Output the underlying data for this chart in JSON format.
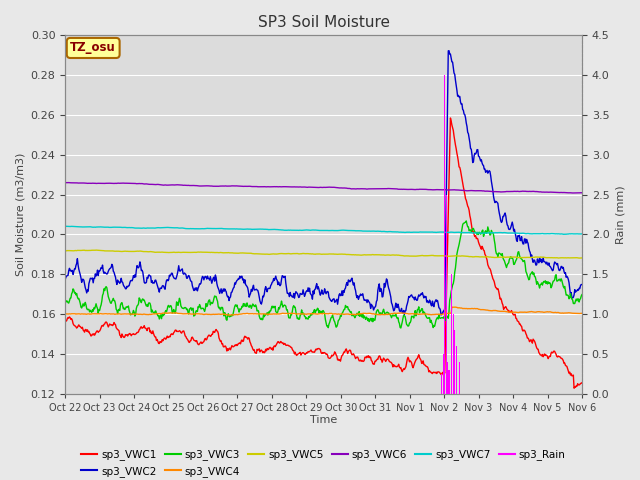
{
  "title": "SP3 Soil Moisture",
  "xlabel": "Time",
  "ylabel_left": "Soil Moisture (m3/m3)",
  "ylabel_right": "Rain (mm)",
  "ylim_left": [
    0.12,
    0.3
  ],
  "ylim_right": [
    0.0,
    4.5
  ],
  "fig_bg_color": "#e8e8e8",
  "plot_bg_color": "#dcdcdc",
  "grid_color": "#ffffff",
  "annotation_text": "TZ_osu",
  "annotation_box_color": "#ffff99",
  "annotation_box_edge": "#aa6600",
  "series": {
    "sp3_VWC1": {
      "color": "#ff0000",
      "lw": 1.0
    },
    "sp3_VWC2": {
      "color": "#0000cc",
      "lw": 1.0
    },
    "sp3_VWC3": {
      "color": "#00cc00",
      "lw": 1.0
    },
    "sp3_VWC4": {
      "color": "#ff8800",
      "lw": 1.0
    },
    "sp3_VWC5": {
      "color": "#cccc00",
      "lw": 1.0
    },
    "sp3_VWC6": {
      "color": "#8800bb",
      "lw": 1.0
    },
    "sp3_VWC7": {
      "color": "#00cccc",
      "lw": 1.0
    },
    "sp3_Rain": {
      "color": "#ff00ff",
      "lw": 1.0
    }
  },
  "xtick_labels": [
    "Oct 22",
    "Oct 23",
    "Oct 24",
    "Oct 25",
    "Oct 26",
    "Oct 27",
    "Oct 28",
    "Oct 29",
    "Oct 30",
    "Oct 31",
    "Nov 1",
    "Nov 2",
    "Nov 3",
    "Nov 4",
    "Nov 5",
    "Nov 6"
  ],
  "yticks_left": [
    0.12,
    0.14,
    0.16,
    0.18,
    0.2,
    0.22,
    0.24,
    0.26,
    0.28,
    0.3
  ],
  "yticks_right": [
    0.0,
    0.5,
    1.0,
    1.5,
    2.0,
    2.5,
    3.0,
    3.5,
    4.0,
    4.5
  ],
  "legend_row1": [
    "sp3_VWC1",
    "sp3_VWC2",
    "sp3_VWC3",
    "sp3_VWC4",
    "sp3_VWC5",
    "sp3_VWC6"
  ],
  "legend_row2": [
    "sp3_VWC7",
    "sp3_Rain"
  ]
}
